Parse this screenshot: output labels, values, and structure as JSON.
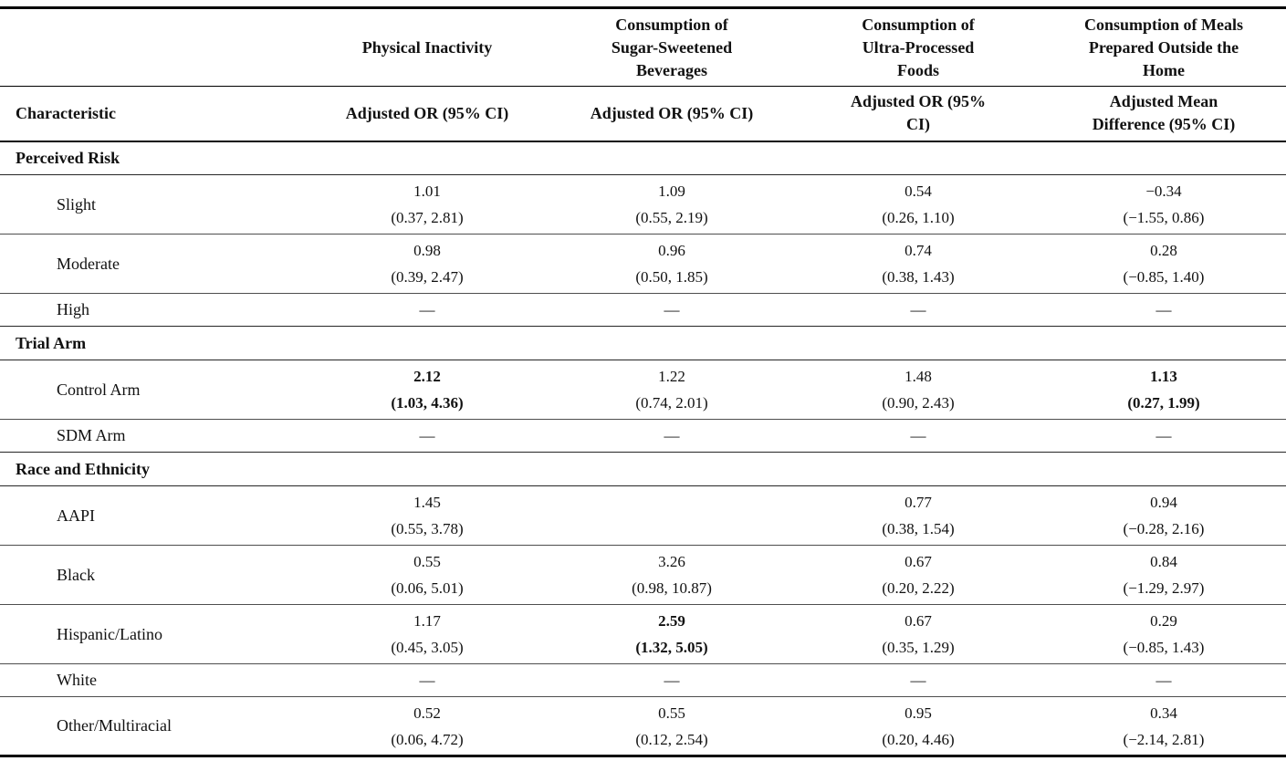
{
  "table": {
    "dash": "—",
    "top_headers": [
      "",
      "Physical Inactivity",
      "Consumption of\nSugar-Sweetened\nBeverages",
      "Consumption of\nUltra-Processed\nFoods",
      "Consumption of Meals\nPrepared Outside the\nHome"
    ],
    "sub_headers": [
      "Characteristic",
      "Adjusted OR (95% CI)",
      "Adjusted OR (95% CI)",
      "Adjusted OR (95%\nCI)",
      "Adjusted Mean\nDifference (95% CI)"
    ],
    "sections": [
      {
        "label": "Perceived Risk",
        "rows": [
          {
            "label": "Slight",
            "cells": [
              {
                "est": "1.01",
                "ci": "(0.37, 2.81)"
              },
              {
                "est": "1.09",
                "ci": "(0.55, 2.19)"
              },
              {
                "est": "0.54",
                "ci": "(0.26, 1.10)"
              },
              {
                "est": "−0.34",
                "ci": "(−1.55, 0.86)"
              }
            ]
          },
          {
            "label": "Moderate",
            "cells": [
              {
                "est": "0.98",
                "ci": "(0.39, 2.47)"
              },
              {
                "est": "0.96",
                "ci": "(0.50, 1.85)"
              },
              {
                "est": "0.74",
                "ci": "(0.38, 1.43)"
              },
              {
                "est": "0.28",
                "ci": "(−0.85, 1.40)"
              }
            ]
          },
          {
            "label": "High",
            "cells": [
              {
                "dash": true
              },
              {
                "dash": true
              },
              {
                "dash": true
              },
              {
                "dash": true
              }
            ]
          }
        ]
      },
      {
        "label": "Trial Arm",
        "rows": [
          {
            "label": "Control Arm",
            "cells": [
              {
                "est": "2.12",
                "ci": "(1.03, 4.36)",
                "bold": true
              },
              {
                "est": "1.22",
                "ci": "(0.74, 2.01)"
              },
              {
                "est": "1.48",
                "ci": "(0.90, 2.43)"
              },
              {
                "est": "1.13",
                "ci": "(0.27, 1.99)",
                "bold": true
              }
            ]
          },
          {
            "label": "SDM Arm",
            "cells": [
              {
                "dash": true
              },
              {
                "dash": true
              },
              {
                "dash": true
              },
              {
                "dash": true
              }
            ]
          }
        ]
      },
      {
        "label": "Race and Ethnicity",
        "rows": [
          {
            "label": "AAPI",
            "cells": [
              {
                "est": "1.45",
                "ci": "(0.55, 3.78)"
              },
              {
                "empty": true
              },
              {
                "est": "0.77",
                "ci": "(0.38, 1.54)"
              },
              {
                "est": "0.94",
                "ci": "(−0.28, 2.16)"
              }
            ]
          },
          {
            "label": "Black",
            "cells": [
              {
                "est": "0.55",
                "ci": "(0.06, 5.01)"
              },
              {
                "est": "3.26",
                "ci": "(0.98, 10.87)"
              },
              {
                "est": "0.67",
                "ci": "(0.20, 2.22)"
              },
              {
                "est": "0.84",
                "ci": "(−1.29, 2.97)"
              }
            ]
          },
          {
            "label": "Hispanic/Latino",
            "cells": [
              {
                "est": "1.17",
                "ci": "(0.45, 3.05)"
              },
              {
                "est": "2.59",
                "ci": "(1.32, 5.05)",
                "bold": true
              },
              {
                "est": "0.67",
                "ci": "(0.35, 1.29)"
              },
              {
                "est": "0.29",
                "ci": "(−0.85, 1.43)"
              }
            ]
          },
          {
            "label": "White",
            "cells": [
              {
                "dash": true
              },
              {
                "dash": true
              },
              {
                "dash": true
              },
              {
                "dash": true
              }
            ]
          },
          {
            "label": "Other/Multiracial",
            "cells": [
              {
                "est": "0.52",
                "ci": "(0.06, 4.72)"
              },
              {
                "est": "0.55",
                "ci": "(0.12, 2.54)"
              },
              {
                "est": "0.95",
                "ci": "(0.20, 4.46)"
              },
              {
                "est": "0.34",
                "ci": "(−2.14, 2.81)"
              }
            ]
          }
        ]
      }
    ]
  }
}
